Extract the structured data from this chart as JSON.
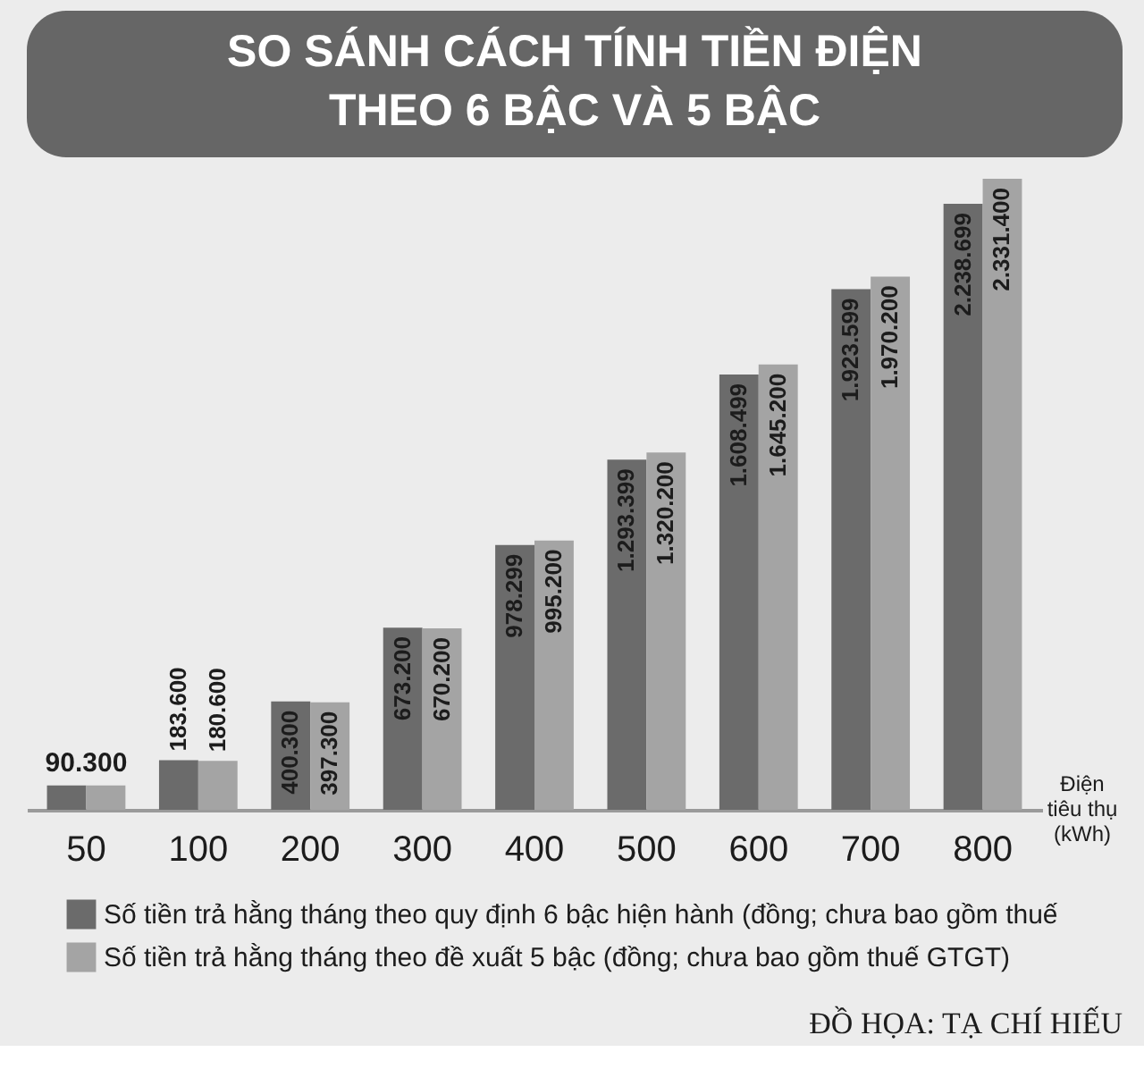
{
  "chart_data": {
    "type": "bar",
    "title": "SO SÁNH CÁCH TÍNH TIỀN ĐIỆN\nTHEO 6 BẬC VÀ 5 BẬC",
    "xlabel": "Điện\ntiêu thụ\n(kWh)",
    "categories": [
      "50",
      "100",
      "200",
      "300",
      "400",
      "500",
      "600",
      "700",
      "800"
    ],
    "series": [
      {
        "name": "Số tiền trả hằng tháng theo quy định 6 bậc hiện hành (đồng; chưa bao gồm thuế",
        "color": "#6b6b6b",
        "values": [
          90300,
          183600,
          400300,
          673200,
          978299,
          1293399,
          1608499,
          1923599,
          2238699
        ],
        "value_labels": [
          "90.300",
          "183.600",
          "400.300",
          "673.200",
          "978.299",
          "1.293.399",
          "1.608.499",
          "1.923.599",
          "2.238.699"
        ]
      },
      {
        "name": "Số tiền trả hằng tháng theo đề xuất 5 bậc (đồng; chưa bao gồm thuế GTGT)",
        "color": "#a4a4a4",
        "values": [
          90300,
          180600,
          397300,
          670200,
          995200,
          1320200,
          1645200,
          1970200,
          2331400
        ],
        "value_labels": [
          null,
          "180.600",
          "397.300",
          "670.200",
          "995.200",
          "1.320.200",
          "1.645.200",
          "1.970.200",
          "2.331.400"
        ]
      }
    ],
    "legend": "bottom",
    "tick_labels": "x",
    "annotations": [
      "ĐỒ HỌA: TẠ CHÍ HIẾU"
    ]
  }
}
